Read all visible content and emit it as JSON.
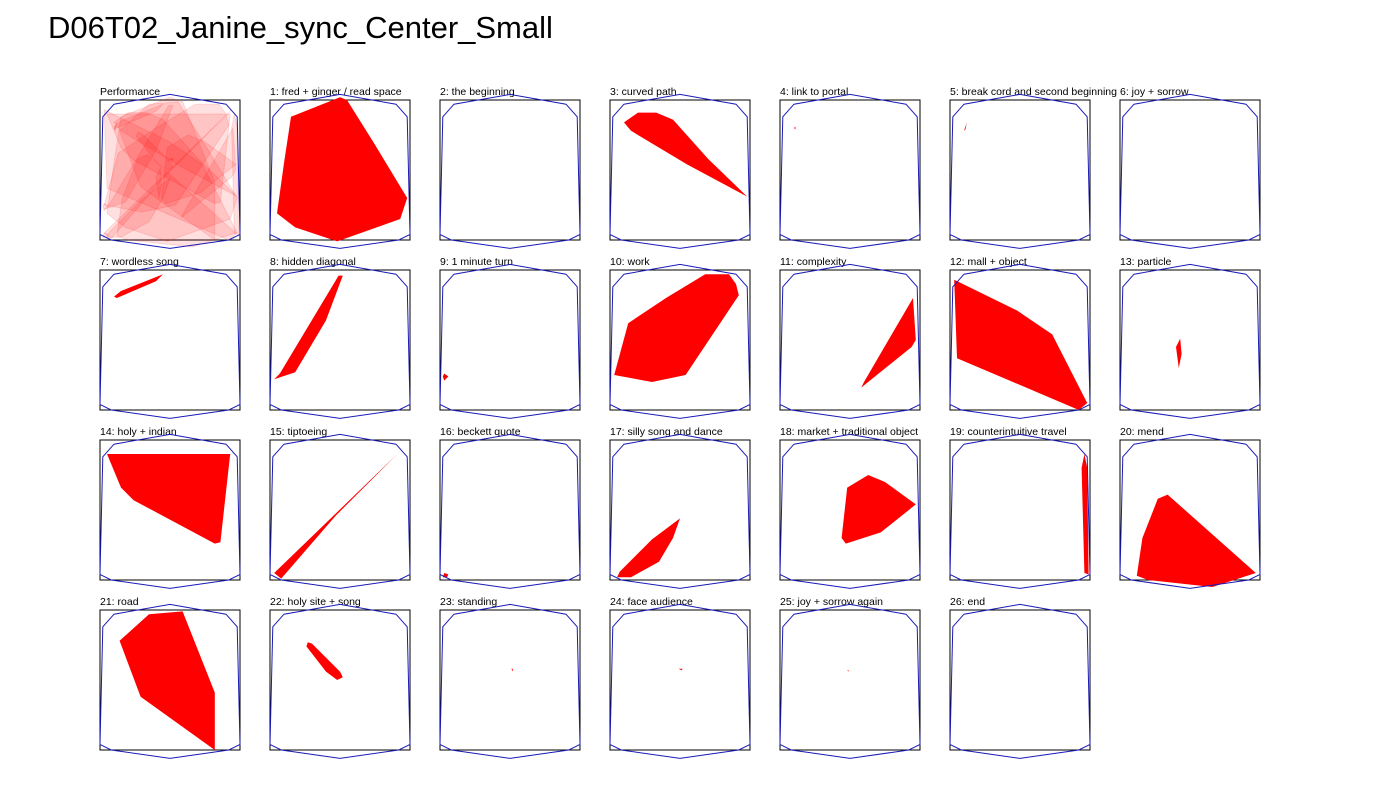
{
  "title": "D06T02_Janine_sync_Center_Small",
  "chart_data": {
    "type": "area",
    "grid": "off",
    "xlim": [
      0,
      1
    ],
    "ylim": [
      0,
      1
    ],
    "room_outline": [
      [
        0.0,
        0.04
      ],
      [
        0.02,
        0.88
      ],
      [
        0.1,
        0.97
      ],
      [
        0.5,
        1.04
      ],
      [
        0.9,
        0.97
      ],
      [
        0.98,
        0.88
      ],
      [
        1.0,
        0.04
      ],
      [
        0.92,
        0.0
      ],
      [
        0.5,
        -0.06
      ],
      [
        0.08,
        0.0
      ]
    ],
    "overview": {
      "label": "Performance",
      "overlay_of": "all sections"
    },
    "sections": [
      {
        "label": "1: fred + ginger / read space",
        "hull": [
          [
            0.5,
            1.02
          ],
          [
            0.55,
            1.0
          ],
          [
            0.75,
            0.68
          ],
          [
            0.98,
            0.3
          ],
          [
            0.93,
            0.15
          ],
          [
            0.48,
            -0.01
          ],
          [
            0.18,
            0.09
          ],
          [
            0.05,
            0.19
          ],
          [
            0.1,
            0.55
          ],
          [
            0.15,
            0.88
          ]
        ]
      },
      {
        "label": "2: the beginning",
        "hull": []
      },
      {
        "label": "3: curved path",
        "hull": [
          [
            0.1,
            0.84
          ],
          [
            0.2,
            0.91
          ],
          [
            0.33,
            0.91
          ],
          [
            0.45,
            0.86
          ],
          [
            0.7,
            0.58
          ],
          [
            0.98,
            0.31
          ],
          [
            0.55,
            0.54
          ],
          [
            0.15,
            0.78
          ]
        ]
      },
      {
        "label": "4: link to portal",
        "hull": [
          [
            0.1,
            0.8
          ],
          [
            0.11,
            0.81
          ],
          [
            0.11,
            0.79
          ]
        ]
      },
      {
        "label": "5: break cord and second beginning",
        "hull": [
          [
            0.1,
            0.78
          ],
          [
            0.12,
            0.84
          ],
          [
            0.11,
            0.79
          ]
        ]
      },
      {
        "label": "6: joy + sorrow",
        "hull": []
      },
      {
        "label": "7: wordless song",
        "hull": [
          [
            0.1,
            0.81
          ],
          [
            0.15,
            0.85
          ],
          [
            0.45,
            0.97
          ],
          [
            0.4,
            0.92
          ],
          [
            0.12,
            0.8
          ]
        ]
      },
      {
        "label": "8: hidden diagonal",
        "hull": [
          [
            0.49,
            0.96
          ],
          [
            0.52,
            0.96
          ],
          [
            0.4,
            0.64
          ],
          [
            0.18,
            0.27
          ],
          [
            0.03,
            0.22
          ],
          [
            0.07,
            0.26
          ]
        ]
      },
      {
        "label": "9: 1 minute turn",
        "hull": [
          [
            0.02,
            0.24
          ],
          [
            0.03,
            0.26
          ],
          [
            0.06,
            0.24
          ],
          [
            0.03,
            0.21
          ]
        ]
      },
      {
        "label": "10: work",
        "hull": [
          [
            0.4,
            0.8
          ],
          [
            0.68,
            0.97
          ],
          [
            0.85,
            0.97
          ],
          [
            0.9,
            0.9
          ],
          [
            0.92,
            0.82
          ],
          [
            0.54,
            0.25
          ],
          [
            0.3,
            0.2
          ],
          [
            0.03,
            0.25
          ],
          [
            0.13,
            0.62
          ]
        ]
      },
      {
        "label": "11: complexity",
        "hull": [
          [
            0.95,
            0.8
          ],
          [
            0.97,
            0.5
          ],
          [
            0.94,
            0.45
          ],
          [
            0.58,
            0.16
          ],
          [
            0.6,
            0.2
          ]
        ]
      },
      {
        "label": "12: mall + object",
        "hull": [
          [
            0.03,
            0.93
          ],
          [
            0.48,
            0.71
          ],
          [
            0.73,
            0.54
          ],
          [
            0.98,
            0.05
          ],
          [
            0.92,
            0.0
          ],
          [
            0.05,
            0.37
          ]
        ]
      },
      {
        "label": "13: particle",
        "hull": [
          [
            0.43,
            0.51
          ],
          [
            0.4,
            0.45
          ],
          [
            0.42,
            0.3
          ],
          [
            0.44,
            0.4
          ]
        ]
      },
      {
        "label": "14: holy + indian",
        "hull": [
          [
            0.05,
            0.9
          ],
          [
            0.93,
            0.9
          ],
          [
            0.86,
            0.27
          ],
          [
            0.82,
            0.26
          ],
          [
            0.24,
            0.57
          ],
          [
            0.15,
            0.66
          ]
        ]
      },
      {
        "label": "15: tiptoeing",
        "hull": [
          [
            0.93,
            0.92
          ],
          [
            0.94,
            0.93
          ],
          [
            0.47,
            0.46
          ],
          [
            0.08,
            0.01
          ],
          [
            0.03,
            0.05
          ]
        ]
      },
      {
        "label": "16: beckett quote",
        "hull": [
          [
            0.03,
            0.05
          ],
          [
            0.06,
            0.04
          ],
          [
            0.05,
            0.02
          ],
          [
            0.02,
            0.02
          ]
        ]
      },
      {
        "label": "17: silly song and dance",
        "hull": [
          [
            0.05,
            0.02
          ],
          [
            0.15,
            0.02
          ],
          [
            0.35,
            0.13
          ],
          [
            0.45,
            0.3
          ],
          [
            0.5,
            0.44
          ],
          [
            0.3,
            0.29
          ],
          [
            0.07,
            0.06
          ]
        ]
      },
      {
        "label": "18: market + traditional object",
        "hull": [
          [
            0.48,
            0.66
          ],
          [
            0.63,
            0.75
          ],
          [
            0.75,
            0.7
          ],
          [
            0.97,
            0.54
          ],
          [
            0.72,
            0.34
          ],
          [
            0.47,
            0.26
          ],
          [
            0.44,
            0.3
          ]
        ]
      },
      {
        "label": "19: counterintuitive travel",
        "hull": [
          [
            0.96,
            0.9
          ],
          [
            0.98,
            0.8
          ],
          [
            0.99,
            0.04
          ],
          [
            0.96,
            0.05
          ],
          [
            0.94,
            0.8
          ]
        ]
      },
      {
        "label": "20: mend",
        "hull": [
          [
            0.27,
            0.58
          ],
          [
            0.34,
            0.61
          ],
          [
            0.97,
            0.05
          ],
          [
            0.66,
            -0.05
          ],
          [
            0.2,
            0.0
          ],
          [
            0.12,
            0.03
          ],
          [
            0.16,
            0.3
          ]
        ]
      },
      {
        "label": "21: road",
        "hull": [
          [
            0.35,
            0.97
          ],
          [
            0.59,
            0.99
          ],
          [
            0.82,
            0.41
          ],
          [
            0.82,
            0.0
          ],
          [
            0.29,
            0.38
          ],
          [
            0.14,
            0.78
          ]
        ]
      },
      {
        "label": "22: holy site + song",
        "hull": [
          [
            0.27,
            0.77
          ],
          [
            0.3,
            0.76
          ],
          [
            0.5,
            0.56
          ],
          [
            0.52,
            0.52
          ],
          [
            0.48,
            0.5
          ],
          [
            0.4,
            0.56
          ],
          [
            0.26,
            0.74
          ]
        ]
      },
      {
        "label": "23: standing",
        "hull": [
          [
            0.51,
            0.58
          ],
          [
            0.52,
            0.58
          ],
          [
            0.52,
            0.56
          ]
        ]
      },
      {
        "label": "24: face audience",
        "hull": [
          [
            0.49,
            0.58
          ],
          [
            0.52,
            0.58
          ],
          [
            0.51,
            0.57
          ]
        ]
      },
      {
        "label": "25: joy + sorrow again",
        "hull": [
          [
            0.48,
            0.57
          ],
          [
            0.49,
            0.57
          ],
          [
            0.49,
            0.56
          ]
        ]
      },
      {
        "label": "26: end",
        "hull": []
      }
    ]
  }
}
